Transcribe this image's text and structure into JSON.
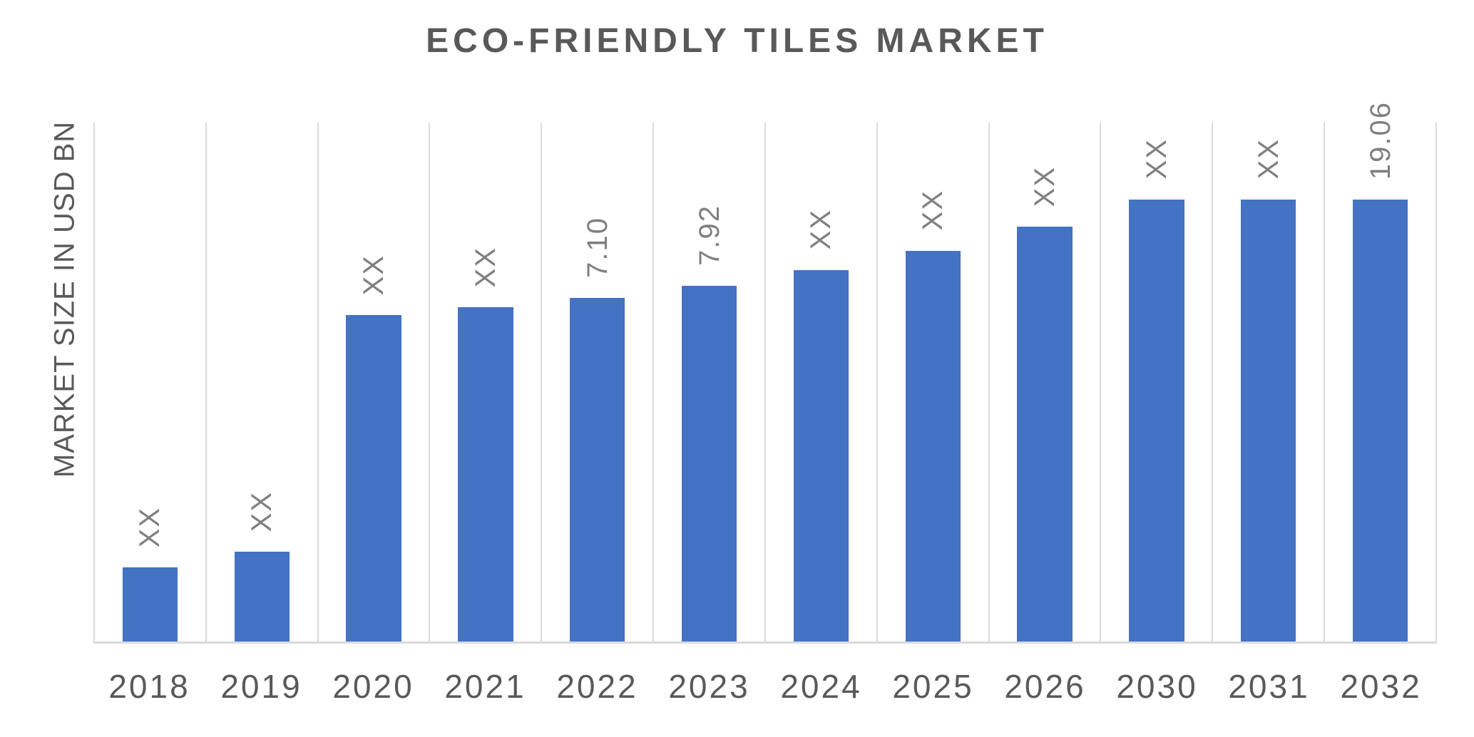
{
  "title": "ECO-FRIENDLY TILES MARKET",
  "y_axis_title": "MARKET SIZE IN USD BN",
  "colors": {
    "bar": "#4472C4",
    "title_text": "#595959",
    "axis_label_text": "#595959",
    "data_label_text": "#7f7f7f",
    "gridline": "#d9d9d9",
    "axis_baseline": "#d9d9d9",
    "background": "#ffffff"
  },
  "chart_data": {
    "type": "bar",
    "title": "ECO-FRIENDLY TILES MARKET",
    "xlabel": "",
    "ylabel": "MARKET SIZE IN USD BN",
    "units": "USD BN",
    "categories": [
      "2018",
      "2019",
      "2020",
      "2021",
      "2022",
      "2023",
      "2024",
      "2025",
      "2026",
      "2030",
      "2031",
      "2032"
    ],
    "values": [
      null,
      null,
      null,
      null,
      7.1,
      7.92,
      null,
      null,
      null,
      null,
      null,
      19.06
    ],
    "data_labels": [
      "XX",
      "XX",
      "XX",
      "XX",
      "7.10",
      "7.92",
      "XX",
      "XX",
      "XX",
      "XX",
      "XX",
      "19.06"
    ],
    "data_label_rotation_deg": 90,
    "bar_heights_pct_of_plot": [
      14.3,
      17.3,
      62.9,
      64.4,
      66.2,
      68.5,
      71.6,
      75.3,
      79.9,
      85.2,
      85.2,
      85.2
    ],
    "note": "Bars with XX labels are undisclosed values; rendered bar heights are illustrative, not linearly scaled to labeled values",
    "grid": "vertical category separator lines only",
    "y_axis_ticks": "none",
    "legend": "none"
  }
}
